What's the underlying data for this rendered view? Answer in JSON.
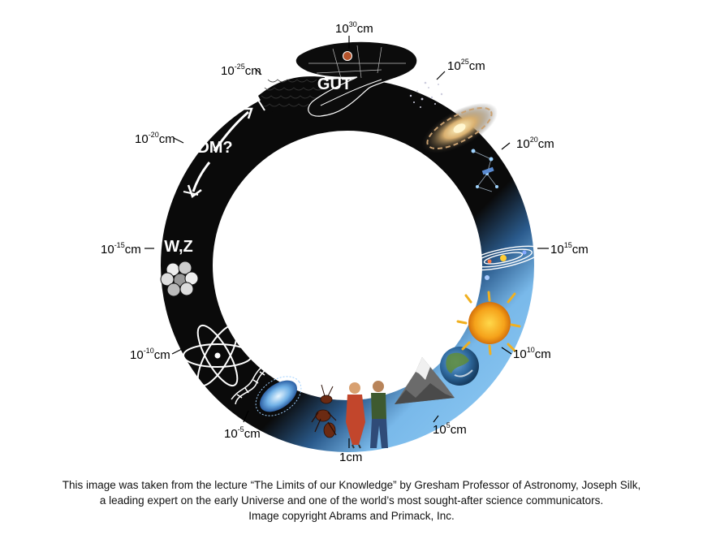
{
  "diagram": {
    "scale_labels": [
      {
        "id": "30",
        "base": "10",
        "exp": "30",
        "unit": "cm"
      },
      {
        "id": "25",
        "base": "10",
        "exp": "25",
        "unit": "cm"
      },
      {
        "id": "20",
        "base": "10",
        "exp": "20",
        "unit": "cm"
      },
      {
        "id": "15",
        "base": "10",
        "exp": "15",
        "unit": "cm"
      },
      {
        "id": "10",
        "base": "10",
        "exp": "10",
        "unit": "cm"
      },
      {
        "id": "5",
        "base": "10",
        "exp": "5",
        "unit": "cm"
      },
      {
        "id": "0",
        "base": "1",
        "exp": "",
        "unit": "cm"
      },
      {
        "id": "m5",
        "base": "10",
        "exp": "-5",
        "unit": "cm"
      },
      {
        "id": "m10",
        "base": "10",
        "exp": "-10",
        "unit": "cm"
      },
      {
        "id": "m15",
        "base": "10",
        "exp": "-15",
        "unit": "cm"
      },
      {
        "id": "m20",
        "base": "10",
        "exp": "-20",
        "unit": "cm"
      },
      {
        "id": "m25",
        "base": "10",
        "exp": "-25",
        "unit": "cm"
      }
    ],
    "inner_labels": {
      "gut": "GUT",
      "dm": "DM?",
      "wz": "W,Z"
    },
    "colors": {
      "serpent_dark": "#0a0a0a",
      "serpent_blue": "#79b9ea",
      "scale_texture": "#1d1d1d"
    },
    "icons": [
      "serpent-head-icon",
      "star-cluster-icon",
      "spiral-galaxy-icon",
      "constellation-icon",
      "solar-system-icon",
      "sun-icon",
      "earth-icon",
      "mountain-icon",
      "human-couple-icon",
      "ant-icon",
      "bacterium-icon",
      "dna-icon",
      "atom-icon",
      "nucleus-icon",
      "dm-arrow-icon"
    ]
  },
  "caption": {
    "line1": "This image was taken from the lecture “The Limits of our Knowledge”  by Gresham Professor of Astronomy, Joseph Silk,",
    "line2": "a leading expert on the early Universe and one of the world’s most sought-after science communicators.",
    "line3": "Image copyright Abrams and Primack, Inc."
  }
}
